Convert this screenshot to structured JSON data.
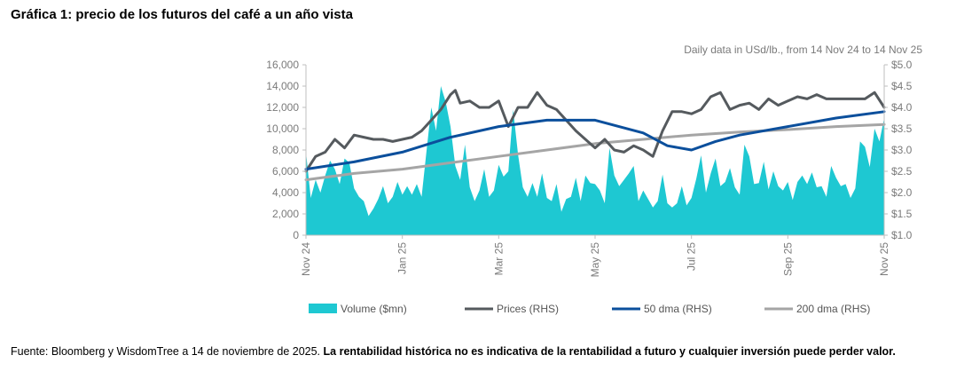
{
  "figure_title": "Gráfica 1: precio de los futuros del café a un año vista",
  "source_note": "Fuente: Bloomberg y WisdomTree a 14 de noviembre de 2025.",
  "disclaimer": "La rentabilidad histórica no es indicativa de la rentabilidad a futuro y cualquier inversión puede perder valor.",
  "colors": {
    "volume": "#1ec8d2",
    "prices": "#555a5e",
    "dma50": "#0b4f9c",
    "dma200": "#a5a5a5",
    "axis": "#bfbfbf"
  },
  "chart_data": {
    "type": "area+line",
    "subtitle": "Daily data in USd/lb., from 14 Nov 24 to 14 Nov 25",
    "x_ticks": [
      "Nov 24",
      "Jan 25",
      "Mar 25",
      "May 25",
      "Jul 25",
      "Sep 25",
      "Nov 25"
    ],
    "y_left": {
      "label": "Volume ($mn)",
      "ylim": [
        0,
        16000
      ],
      "ticks": [
        "0",
        "2,000",
        "4,000",
        "6,000",
        "8,000",
        "10,000",
        "12,000",
        "14,000",
        "16,000"
      ]
    },
    "y_right": {
      "label": "USd/lb.",
      "ylim": [
        1.0,
        5.0
      ],
      "ticks": [
        "$1.0",
        "$1.5",
        "$2.0",
        "$2.5",
        "$3.0",
        "$3.5",
        "$4.0",
        "$4.5",
        "$5.0"
      ]
    },
    "legend": [
      "Volume ($mn)",
      "Prices (RHS)",
      "50 dma (RHS)",
      "200 dma (RHS)"
    ],
    "x_range_months": [
      0,
      12
    ],
    "series": [
      {
        "name": "Volume ($mn)",
        "axis": "left",
        "kind": "area",
        "x": [
          0,
          0.1,
          0.2,
          0.3,
          0.4,
          0.5,
          0.6,
          0.7,
          0.8,
          0.9,
          1.0,
          1.1,
          1.2,
          1.3,
          1.4,
          1.5,
          1.6,
          1.7,
          1.8,
          1.9,
          2.0,
          2.1,
          2.2,
          2.3,
          2.4,
          2.5,
          2.6,
          2.7,
          2.8,
          2.9,
          3.0,
          3.1,
          3.2,
          3.3,
          3.4,
          3.5,
          3.6,
          3.7,
          3.8,
          3.9,
          4.0,
          4.1,
          4.2,
          4.3,
          4.4,
          4.5,
          4.6,
          4.7,
          4.8,
          4.9,
          5.0,
          5.1,
          5.2,
          5.3,
          5.4,
          5.5,
          5.6,
          5.7,
          5.8,
          5.9,
          6.0,
          6.1,
          6.2,
          6.3,
          6.4,
          6.5,
          6.6,
          6.7,
          6.8,
          6.9,
          7.0,
          7.1,
          7.2,
          7.3,
          7.4,
          7.5,
          7.6,
          7.7,
          7.8,
          7.9,
          8.0,
          8.1,
          8.2,
          8.3,
          8.4,
          8.5,
          8.6,
          8.7,
          8.8,
          8.9,
          9.0,
          9.1,
          9.2,
          9.3,
          9.4,
          9.5,
          9.6,
          9.7,
          9.8,
          9.9,
          10.0,
          10.1,
          10.2,
          10.3,
          10.4,
          10.5,
          10.6,
          10.7,
          10.8,
          10.9,
          11.0,
          11.1,
          11.2,
          11.3,
          11.4,
          11.5,
          11.6,
          11.7,
          11.8,
          11.9,
          12.0
        ],
        "values": [
          7800,
          3500,
          5200,
          4000,
          5600,
          7000,
          6200,
          4800,
          7200,
          6800,
          4400,
          3600,
          3200,
          1800,
          2500,
          3400,
          4600,
          3000,
          3600,
          5000,
          3800,
          4600,
          3800,
          4800,
          3600,
          7800,
          12000,
          9800,
          14000,
          12500,
          10200,
          6500,
          5200,
          8500,
          4500,
          3200,
          4200,
          6200,
          3600,
          4200,
          6600,
          5500,
          6000,
          11800,
          7600,
          4500,
          3600,
          4900,
          3600,
          5800,
          3500,
          3200,
          4800,
          2200,
          3400,
          3600,
          5400,
          3200,
          5600,
          4900,
          4800,
          4200,
          3000,
          8200,
          5600,
          4600,
          5200,
          5800,
          6500,
          3200,
          4200,
          3400,
          2600,
          3200,
          5700,
          3000,
          2600,
          3000,
          4600,
          2800,
          3500,
          5300,
          7500,
          4000,
          5800,
          7200,
          4600,
          5000,
          6300,
          4500,
          3800,
          8500,
          7400,
          4800,
          4900,
          6900,
          4300,
          6000,
          4600,
          4200,
          5000,
          3300,
          5000,
          5600,
          4800,
          5900,
          4500,
          4600,
          3600,
          6500,
          5400,
          4600,
          4800,
          3500,
          4400,
          8800,
          8300,
          6400,
          10000,
          8800,
          11000
        ]
      },
      {
        "name": "Prices (RHS)",
        "axis": "right",
        "kind": "line",
        "x": [
          0,
          0.2,
          0.4,
          0.6,
          0.8,
          1.0,
          1.2,
          1.4,
          1.6,
          1.8,
          2.0,
          2.2,
          2.4,
          2.6,
          2.8,
          3.0,
          3.1,
          3.2,
          3.4,
          3.6,
          3.8,
          4.0,
          4.2,
          4.4,
          4.6,
          4.8,
          5.0,
          5.2,
          5.4,
          5.6,
          5.8,
          6.0,
          6.2,
          6.4,
          6.6,
          6.8,
          7.0,
          7.2,
          7.4,
          7.6,
          7.8,
          8.0,
          8.2,
          8.4,
          8.6,
          8.8,
          9.0,
          9.2,
          9.4,
          9.6,
          9.8,
          10.0,
          10.2,
          10.4,
          10.6,
          10.8,
          11.0,
          11.2,
          11.4,
          11.6,
          11.8,
          12.0
        ],
        "values": [
          2.5,
          2.85,
          2.95,
          3.25,
          3.05,
          3.35,
          3.3,
          3.25,
          3.25,
          3.2,
          3.25,
          3.3,
          3.45,
          3.7,
          3.95,
          4.3,
          4.4,
          4.1,
          4.15,
          4.0,
          4.0,
          4.15,
          3.55,
          4.0,
          4.0,
          4.35,
          4.05,
          3.95,
          3.7,
          3.45,
          3.25,
          3.05,
          3.25,
          3.0,
          2.95,
          3.1,
          3.0,
          2.85,
          3.45,
          3.9,
          3.9,
          3.85,
          3.95,
          4.25,
          4.35,
          3.95,
          4.05,
          4.1,
          3.95,
          4.2,
          4.05,
          4.15,
          4.25,
          4.2,
          4.3,
          4.2,
          4.2,
          4.2,
          4.2,
          4.2,
          4.35,
          4.0
        ]
      },
      {
        "name": "50 dma (RHS)",
        "axis": "right",
        "kind": "line",
        "x": [
          0,
          1,
          2,
          3,
          4,
          5,
          6,
          7,
          7.5,
          8,
          8.5,
          9,
          10,
          11,
          12
        ],
        "values": [
          2.55,
          2.72,
          2.95,
          3.3,
          3.55,
          3.7,
          3.7,
          3.4,
          3.1,
          3.0,
          3.2,
          3.35,
          3.55,
          3.75,
          3.9
        ]
      },
      {
        "name": "200 dma (RHS)",
        "axis": "right",
        "kind": "line",
        "x": [
          0,
          1,
          2,
          3,
          4,
          5,
          6,
          7,
          8,
          9,
          10,
          11,
          12
        ],
        "values": [
          2.3,
          2.45,
          2.55,
          2.7,
          2.85,
          3.0,
          3.15,
          3.25,
          3.35,
          3.42,
          3.48,
          3.55,
          3.6
        ]
      }
    ]
  }
}
